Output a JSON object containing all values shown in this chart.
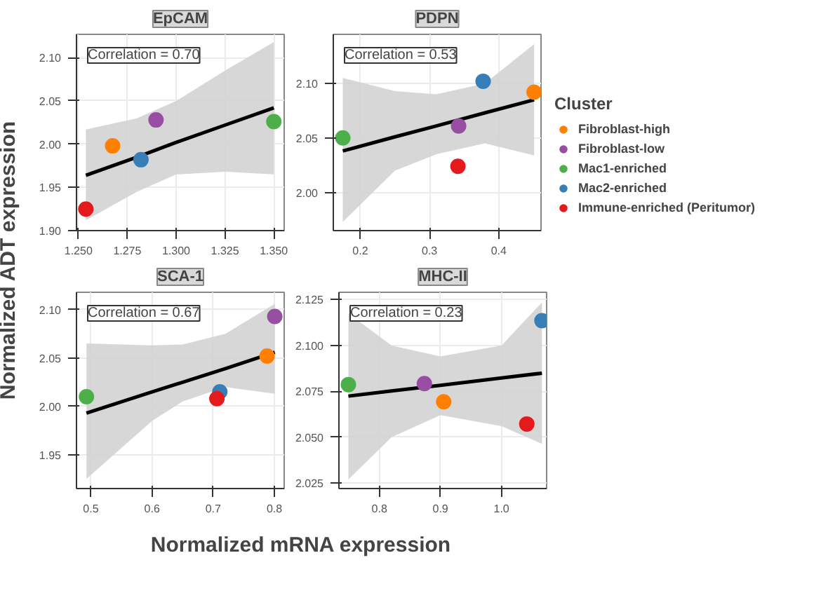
{
  "chart_data": [
    {
      "type": "scatter",
      "title": "EpCAM",
      "ylabel": "Normalized ADT expression",
      "annotations": [
        "Correlation = 0.70"
      ],
      "grid": true,
      "marker": "circle",
      "xlim": [
        1.249,
        1.3553
      ],
      "ylim": [
        1.9,
        2.127
      ],
      "xticks": [
        {
          "value": 1.25,
          "label": "1.250"
        },
        1.275,
        {
          "value": 1.3,
          "label": "1.300"
        },
        1.325,
        {
          "value": 1.35,
          "label": "1.350"
        }
      ],
      "yticks": [
        {
          "value": 1.9,
          "label": "1.90"
        },
        1.95,
        {
          "value": 2.0,
          "label": "2.00"
        },
        2.05,
        {
          "value": 2.1,
          "label": "2.10"
        }
      ],
      "series": [
        {
          "type": "line",
          "marker": "none",
          "color": "#000000",
          "x": [
            1.2538,
            1.28,
            1.3,
            1.325,
            1.35
          ],
          "values": [
            1.964,
            1.985,
            2.002,
            2.022,
            2.042
          ],
          "lower": [
            1.912,
            1.945,
            1.965,
            1.968,
            1.965
          ],
          "upper": [
            2.017,
            2.03,
            2.05,
            2.085,
            2.118
          ]
        },
        {
          "color": "#ff7f00",
          "x": [
            1.2675
          ],
          "values": [
            1.998
          ]
        },
        {
          "color": "#984ea3",
          "x": [
            1.2897
          ],
          "values": [
            2.028
          ]
        },
        {
          "color": "#4daf4a",
          "x": [
            1.35
          ],
          "values": [
            2.026
          ]
        },
        {
          "color": "#377eb8",
          "x": [
            1.282
          ],
          "values": [
            1.982
          ]
        },
        {
          "color": "#e41a1c",
          "x": [
            1.2538
          ],
          "values": [
            1.925
          ]
        }
      ]
    },
    {
      "type": "scatter",
      "title": "PDPN",
      "annotations": [
        "Correlation = 0.53"
      ],
      "grid": true,
      "marker": "circle",
      "legend": "right",
      "legend_title": "Cluster",
      "xlim": [
        0.161,
        0.461
      ],
      "ylim": [
        1.965,
        2.145
      ],
      "xticks": [
        0.2,
        0.3,
        0.4
      ],
      "yticks": [
        {
          "value": 2.0,
          "label": "2.00"
        },
        2.05,
        {
          "value": 2.1,
          "label": "2.10"
        }
      ],
      "series": [
        {
          "type": "line",
          "marker": "none",
          "color": "#000000",
          "x": [
            0.1747,
            0.25,
            0.31,
            0.38,
            0.451
          ],
          "values": [
            2.038,
            2.051,
            2.061,
            2.073,
            2.085
          ],
          "lower": [
            1.973,
            2.02,
            2.035,
            2.045,
            2.034
          ],
          "upper": [
            2.105,
            2.093,
            2.09,
            2.1,
            2.136
          ]
        },
        {
          "name": "Fibroblast-high",
          "color": "#ff7f00",
          "x": [
            0.451
          ],
          "values": [
            2.092
          ]
        },
        {
          "name": "Fibroblast-low",
          "color": "#984ea3",
          "x": [
            0.342
          ],
          "values": [
            2.061
          ]
        },
        {
          "name": "Mac1-enriched",
          "color": "#4daf4a",
          "x": [
            0.1747
          ],
          "values": [
            2.05
          ]
        },
        {
          "name": "Mac2-enriched",
          "color": "#377eb8",
          "x": [
            0.3774
          ],
          "values": [
            2.102
          ]
        },
        {
          "name": "Immune-enriched (Peritumor)",
          "color": "#e41a1c",
          "x": [
            0.341
          ],
          "values": [
            2.024
          ]
        }
      ]
    },
    {
      "type": "scatter",
      "title": "SCA-1",
      "xlabel": "Normalized mRNA expression",
      "annotations": [
        "Correlation = 0.67"
      ],
      "grid": true,
      "marker": "circle",
      "xlim": [
        0.4765,
        0.816
      ],
      "ylim": [
        1.915,
        2.118
      ],
      "xticks": [
        0.5,
        0.6,
        0.7,
        0.8
      ],
      "yticks": [
        1.95,
        {
          "value": 2.0,
          "label": "2.00"
        },
        2.05,
        {
          "value": 2.1,
          "label": "2.10"
        }
      ],
      "series": [
        {
          "type": "line",
          "marker": "none",
          "color": "#000000",
          "x": [
            0.4928,
            0.6,
            0.65,
            0.72,
            0.8006
          ],
          "values": [
            1.993,
            2.015,
            2.025,
            2.039,
            2.056
          ],
          "lower": [
            1.925,
            1.985,
            2.005,
            2.02,
            2.013
          ],
          "upper": [
            2.065,
            2.063,
            2.064,
            2.075,
            2.106
          ]
        },
        {
          "color": "#ff7f00",
          "x": [
            0.788
          ],
          "values": [
            2.052
          ]
        },
        {
          "color": "#984ea3",
          "x": [
            0.8006
          ],
          "values": [
            2.093
          ]
        },
        {
          "color": "#4daf4a",
          "x": [
            0.4928
          ],
          "values": [
            2.01
          ]
        },
        {
          "color": "#377eb8",
          "x": [
            0.7108
          ],
          "values": [
            2.015
          ]
        },
        {
          "color": "#e41a1c",
          "x": [
            0.706
          ],
          "values": [
            2.008
          ]
        }
      ]
    },
    {
      "type": "scatter",
      "title": "MHC-II",
      "annotations": [
        "Correlation = 0.23"
      ],
      "grid": true,
      "marker": "circle",
      "xlim": [
        0.7337,
        1.074
      ],
      "ylim": [
        2.022,
        2.129
      ],
      "xticks": [
        0.8,
        0.9,
        {
          "value": 1.0,
          "label": "1.0"
        }
      ],
      "yticks": [
        2.025,
        {
          "value": 2.05,
          "label": "2.050"
        },
        2.075,
        {
          "value": 2.1,
          "label": "2.100"
        },
        2.125
      ],
      "series": [
        {
          "type": "line",
          "marker": "none",
          "color": "#000000",
          "x": [
            0.7492,
            0.82,
            0.9,
            1.0,
            1.0663
          ],
          "values": [
            2.0724,
            2.0752,
            2.0783,
            2.0823,
            2.0849
          ],
          "lower": [
            2.027,
            2.05,
            2.062,
            2.056,
            2.0464
          ],
          "upper": [
            2.1175,
            2.1,
            2.094,
            2.1,
            2.1235
          ]
        },
        {
          "color": "#ff7f00",
          "x": [
            0.9053
          ],
          "values": [
            2.0693
          ]
        },
        {
          "color": "#984ea3",
          "x": [
            0.8737
          ],
          "values": [
            2.0792
          ]
        },
        {
          "color": "#4daf4a",
          "x": [
            0.7492
          ],
          "values": [
            2.0787
          ]
        },
        {
          "color": "#377eb8",
          "x": [
            1.0663
          ],
          "values": [
            2.1135
          ]
        },
        {
          "color": "#e41a1c",
          "x": [
            1.0415
          ],
          "values": [
            2.0572
          ]
        }
      ]
    }
  ]
}
